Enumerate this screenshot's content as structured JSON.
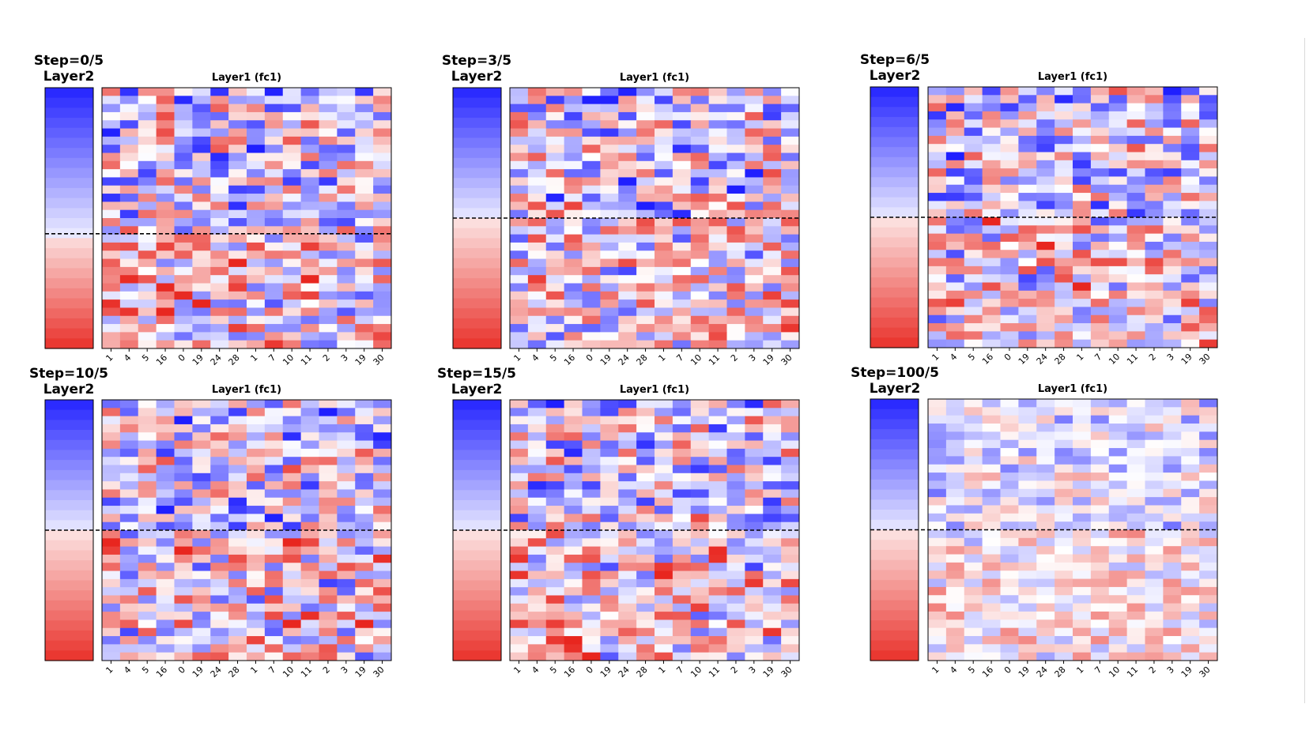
{
  "chart_data": [
    {
      "type": "heatmap",
      "step_label": "Step=0/5",
      "layer2_title": "Layer2",
      "layer1_title": "Layer1 (fc1)",
      "x_tick_labels": [
        "1",
        "4",
        "5",
        "16",
        "0",
        "19",
        "24",
        "28",
        "1",
        "7",
        "10",
        "11",
        "2",
        "3",
        "19",
        "30"
      ],
      "n_rows": 32,
      "split_fraction": 0.56,
      "color_scale": "bwr"
    },
    {
      "type": "heatmap",
      "step_label": "Step=3/5",
      "layer2_title": "Layer2",
      "layer1_title": "Layer1 (fc1)",
      "x_tick_labels": [
        "1",
        "4",
        "5",
        "16",
        "0",
        "19",
        "24",
        "28",
        "1",
        "7",
        "10",
        "11",
        "2",
        "3",
        "19",
        "30"
      ],
      "n_rows": 32,
      "split_fraction": 0.5,
      "color_scale": "bwr"
    },
    {
      "type": "heatmap",
      "step_label": "Step=6/5",
      "layer2_title": "Layer2",
      "layer1_title": "Layer1 (fc1)",
      "x_tick_labels": [
        "1",
        "4",
        "5",
        "16",
        "0",
        "19",
        "24",
        "28",
        "1",
        "7",
        "10",
        "11",
        "2",
        "3",
        "19",
        "30"
      ],
      "n_rows": 32,
      "split_fraction": 0.5,
      "color_scale": "bwr"
    },
    {
      "type": "heatmap",
      "step_label": "Step=10/5",
      "layer2_title": "Layer2",
      "layer1_title": "Layer1 (fc1)",
      "x_tick_labels": [
        "1",
        "4",
        "5",
        "16",
        "0",
        "19",
        "24",
        "28",
        "1",
        "7",
        "10",
        "11",
        "2",
        "3",
        "19",
        "30"
      ],
      "n_rows": 32,
      "split_fraction": 0.5,
      "color_scale": "bwr"
    },
    {
      "type": "heatmap",
      "step_label": "Step=15/5",
      "layer2_title": "Layer2",
      "layer1_title": "Layer1 (fc1)",
      "x_tick_labels": [
        "1",
        "4",
        "5",
        "16",
        "0",
        "19",
        "24",
        "28",
        "1",
        "7",
        "10",
        "11",
        "2",
        "3",
        "19",
        "30"
      ],
      "n_rows": 32,
      "split_fraction": 0.5,
      "color_scale": "bwr"
    },
    {
      "type": "heatmap",
      "step_label": "Step=100/5",
      "layer2_title": "Layer2",
      "layer1_title": "Layer1 (fc1)",
      "x_tick_labels": [
        "1",
        "4",
        "5",
        "16",
        "0",
        "19",
        "24",
        "28",
        "1",
        "7",
        "10",
        "11",
        "2",
        "3",
        "19",
        "30"
      ],
      "n_rows": 32,
      "split_fraction": 0.5,
      "color_scale": "bwr"
    }
  ],
  "colors": {
    "blue": "#1f1fff",
    "white": "#ffffff",
    "red": "#e8261f",
    "axis": "#000000"
  }
}
